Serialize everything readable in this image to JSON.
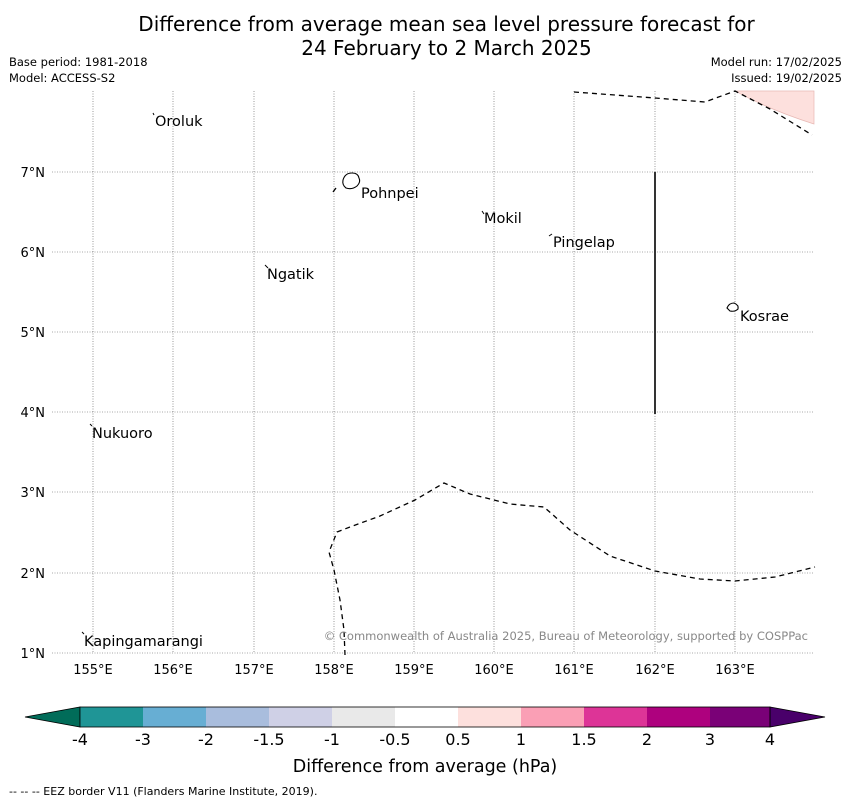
{
  "title": {
    "line1": "Difference from average mean sea level pressure forecast for",
    "line2": "24 February to 2 March 2025"
  },
  "meta": {
    "base_period": "Base period: 1981-2018",
    "model": "Model: ACCESS-S2",
    "model_run": "Model run: 17/02/2025",
    "issued": "Issued: 19/02/2025"
  },
  "map": {
    "lat_labels": [
      "7°N",
      "6°N",
      "5°N",
      "4°N",
      "3°N",
      "2°N",
      "1°N"
    ],
    "lon_labels": [
      "155°E",
      "156°E",
      "157°E",
      "158°E",
      "159°E",
      "160°E",
      "161°E",
      "162°E",
      "163°E"
    ],
    "places": [
      "Oroluk",
      "Pohnpei",
      "Mokil",
      "Pingelap",
      "Ngatik",
      "Kosrae",
      "Nukuoro",
      "Kapingamarangi"
    ],
    "copyright": "© Commonwealth of Australia 2025, Bureau of Meteorology, supported by COSPPac",
    "anomaly_color": "#fde0dd"
  },
  "colorbar": {
    "ticks": [
      "-4",
      "-3",
      "-2",
      "-1.5",
      "-1",
      "-0.5",
      "0.5",
      "1",
      "1.5",
      "2",
      "3",
      "4"
    ],
    "colors": [
      "#1f9596",
      "#67aed3",
      "#a9bddd",
      "#cfd0e6",
      "#e9e9e9",
      "#ffffff",
      "#fde0dd",
      "#fa9fb5",
      "#dd3497",
      "#ae017e",
      "#7a0177"
    ],
    "low_color": "#016c59",
    "high_color": "#49006a",
    "label": "Difference from average (hPa)"
  },
  "footnote": "-- -- -- EEZ border V11 (Flanders Marine Institute, 2019)."
}
